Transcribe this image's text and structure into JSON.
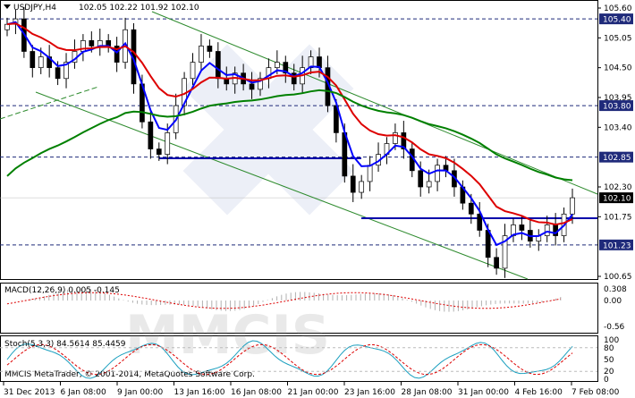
{
  "header": {
    "symbol": "USDJPY,H4",
    "ohlc": "102.05 102.22 101.92 102.10"
  },
  "price_axis": {
    "ticks": [
      "105.60",
      "105.05",
      "104.50",
      "103.95",
      "103.40",
      "102.30",
      "101.75",
      "100.65"
    ],
    "level_tags": [
      {
        "label": "105.40",
        "value": 105.4,
        "color": "#1f2a7a"
      },
      {
        "label": "103.80",
        "value": 103.8,
        "color": "#1f2a7a"
      },
      {
        "label": "102.85",
        "value": 102.85,
        "color": "#1f2a7a"
      },
      {
        "label": "102.10",
        "value": 102.1,
        "color": "#000000"
      },
      {
        "label": "101.23",
        "value": 101.23,
        "color": "#1f2a7a"
      }
    ]
  },
  "macd": {
    "label": "MACD(12,26,9) 0.005 -0.145",
    "ticks": [
      "0.308",
      "0.00",
      "-0.56"
    ]
  },
  "stoch": {
    "label": "Stoch(5,3,3) 84.5614 85.4459",
    "ticks": [
      "100",
      "80",
      "50",
      "20",
      "0"
    ]
  },
  "footer": {
    "copyright": "MMCIS MetaTrader, © 2001-2014, MetaQuotes Software Corp."
  },
  "watermark": "MMCIS",
  "time_axis": [
    "31 Dec 2013",
    "6 Jan 08:00",
    "9 Jan 00:00",
    "13 Jan 16:00",
    "16 Jan 08:00",
    "21 Jan 00:00",
    "23 Jan 16:00",
    "28 Jan 08:00",
    "31 Jan 00:00",
    "4 Feb 16:00",
    "7 Feb 08:00"
  ],
  "colors": {
    "ema_fast": "#0000ff",
    "ema_mid": "#dd0000",
    "ema_slow": "#008000",
    "channel": "#2e8b2e",
    "level": "#0000aa",
    "label_bg": "#1f2a7a"
  }
}
